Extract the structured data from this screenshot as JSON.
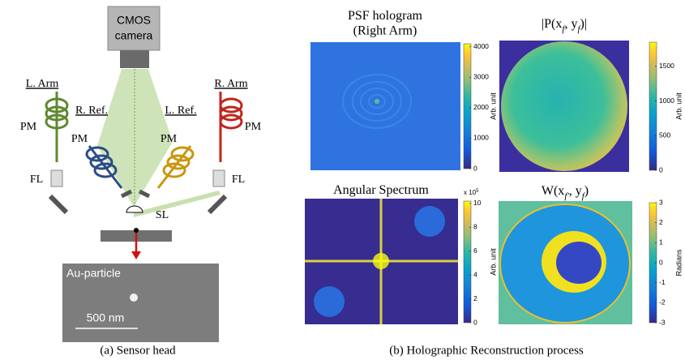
{
  "sensor_head": {
    "camera_line1": "CMOS",
    "camera_line2": "camera",
    "left_arm": "L. Arm",
    "right_arm": "R. Arm",
    "right_ref": "R. Ref.",
    "left_ref": "L. Ref.",
    "pm": "PM",
    "fl": "FL",
    "sl": "SL",
    "particle": "Au-particle",
    "scale_bar": "500 nm",
    "caption": "(a) Sensor head"
  },
  "reconstruction": {
    "caption": "(b) Holographic Reconstruction process",
    "panels": [
      {
        "title": [
          {
            "t": "PSF hologram"
          }
        ],
        "title2": "(Right Arm)",
        "colorbar": {
          "label": "Arb. unit",
          "lim": [
            0,
            4100
          ],
          "ticks": [
            0,
            1000,
            2000,
            3000,
            4000
          ]
        }
      },
      {
        "title": [
          {
            "t": "|P(x"
          },
          {
            "t": "f",
            "sub": true
          },
          {
            "t": ", y"
          },
          {
            "t": "f",
            "sub": true
          },
          {
            "t": ")|"
          }
        ],
        "colorbar": {
          "label": "Arb. unit",
          "lim": [
            0,
            1850
          ],
          "ticks": [
            0,
            500,
            1000,
            1500
          ]
        }
      },
      {
        "title": [
          {
            "t": "Angular Spectrum"
          }
        ],
        "colorbar": {
          "label": "Arb. unit",
          "lim": [
            0,
            10.2
          ],
          "ticks": [
            0,
            2,
            4,
            6,
            8,
            10
          ],
          "multiplier": {
            "base": "x 10",
            "exp": "5"
          }
        }
      },
      {
        "title": [
          {
            "t": "W(x"
          },
          {
            "t": "f'",
            "sub": true
          },
          {
            "t": ", y"
          },
          {
            "t": "f",
            "sub": true
          },
          {
            "t": ")"
          }
        ],
        "colorbar": {
          "label": "Radians",
          "lim": [
            -3,
            3
          ],
          "ticks": [
            -3,
            -2,
            -1,
            0,
            1,
            2,
            3
          ]
        }
      }
    ]
  }
}
